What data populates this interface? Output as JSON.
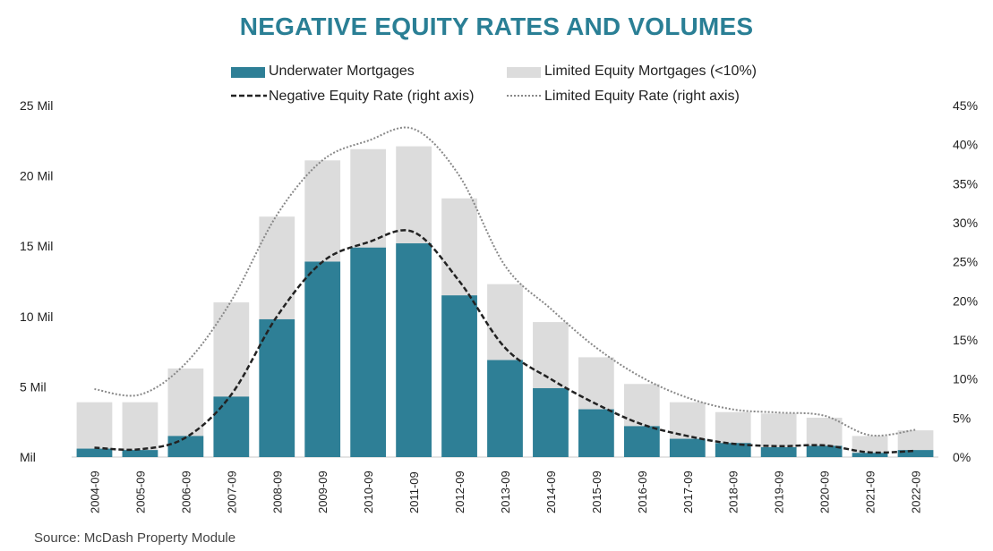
{
  "chart_data": {
    "type": "bar",
    "title": "NEGATIVE EQUITY RATES AND VOLUMES",
    "source": "Source: McDash Property Module",
    "categories": [
      "2004-09",
      "2005-09",
      "2006-09",
      "2007-09",
      "2008-09",
      "2009-09",
      "2010-09",
      "2011-09",
      "2012-09",
      "2013-09",
      "2014-09",
      "2015-09",
      "2016-09",
      "2017-09",
      "2018-09",
      "2019-09",
      "2020-09",
      "2021-09",
      "2022-09"
    ],
    "y_left": {
      "ticks": [
        0,
        5,
        10,
        15,
        20,
        25
      ],
      "tick_labels": [
        "Mil",
        "5 Mil",
        "10 Mil",
        "15 Mil",
        "20 Mil",
        "25 Mil"
      ],
      "ylim": [
        0,
        25
      ]
    },
    "y_right": {
      "ticks": [
        0,
        5,
        10,
        15,
        20,
        25,
        30,
        35,
        40,
        45
      ],
      "tick_labels": [
        "0%",
        "5%",
        "10%",
        "15%",
        "20%",
        "25%",
        "30%",
        "35%",
        "40%",
        "45%"
      ],
      "ylim": [
        0,
        45
      ]
    },
    "series": [
      {
        "name": "Underwater Mortgages",
        "kind": "bar",
        "axis": "left",
        "color": "#2e7f96",
        "values": [
          0.6,
          0.5,
          1.5,
          4.3,
          9.8,
          13.9,
          14.9,
          15.2,
          11.5,
          6.9,
          4.9,
          3.4,
          2.2,
          1.3,
          1.0,
          0.7,
          0.8,
          0.3,
          0.5
        ]
      },
      {
        "name": "Limited Equity Mortgages (<10%)",
        "kind": "bar",
        "axis": "left",
        "color": "#dcdcdc",
        "values": [
          3.9,
          3.9,
          6.3,
          11.0,
          17.1,
          21.1,
          21.9,
          22.1,
          18.4,
          12.3,
          9.6,
          7.1,
          5.2,
          3.9,
          3.2,
          3.1,
          2.8,
          1.5,
          1.9
        ]
      },
      {
        "name": "Negative Equity Rate (right axis)",
        "kind": "line",
        "style": "dashed",
        "axis": "right",
        "color": "#222222",
        "values": [
          1.2,
          1.0,
          2.5,
          8.0,
          18.0,
          25.0,
          27.5,
          28.8,
          22.5,
          14.0,
          10.0,
          6.8,
          4.2,
          2.7,
          1.7,
          1.4,
          1.5,
          0.6,
          0.8
        ]
      },
      {
        "name": "Limited Equity Rate (right axis)",
        "kind": "line",
        "style": "dotted",
        "axis": "right",
        "color": "#888888",
        "values": [
          8.7,
          8.0,
          12.0,
          20.0,
          31.0,
          38.0,
          40.5,
          42.0,
          36.0,
          24.5,
          19.0,
          14.0,
          10.2,
          7.6,
          6.1,
          5.7,
          5.3,
          2.8,
          3.5
        ]
      }
    ],
    "legend": "top-center",
    "grid": false
  }
}
